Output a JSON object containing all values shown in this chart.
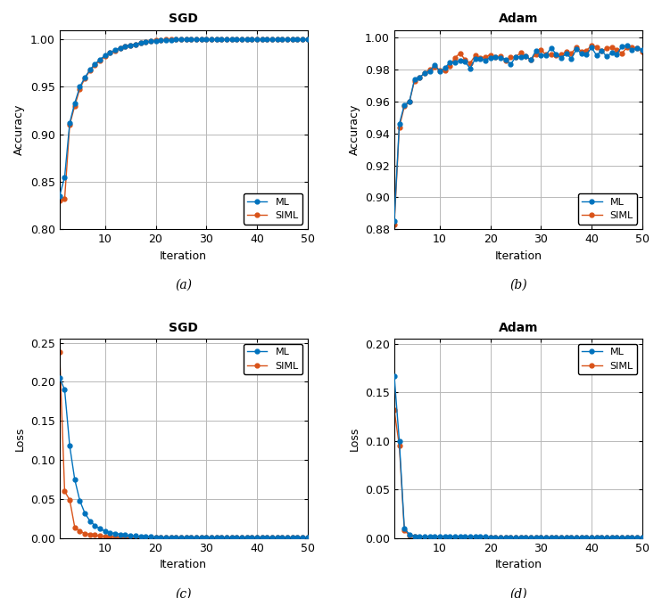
{
  "blue_color": "#0072BD",
  "orange_color": "#D95319",
  "background_color": "#ffffff",
  "grid_color": "#b0b0b0",
  "sgd_acc_ml": [
    0.835,
    0.855,
    0.912,
    0.933,
    0.95,
    0.96,
    0.968,
    0.974,
    0.979,
    0.983,
    0.986,
    0.989,
    0.991,
    0.993,
    0.994,
    0.995,
    0.996,
    0.997,
    0.998,
    0.998,
    0.999,
    0.999,
    0.999,
    1.0,
    1.0,
    1.0,
    1.0,
    1.0,
    1.0,
    1.0,
    1.0,
    1.0,
    1.0,
    1.0,
    1.0,
    1.0,
    1.0,
    1.0,
    1.0,
    1.0,
    1.0,
    1.0,
    1.0,
    1.0,
    1.0,
    1.0,
    1.0,
    1.0,
    1.0,
    1.0
  ],
  "sgd_acc_siml": [
    0.83,
    0.832,
    0.91,
    0.93,
    0.948,
    0.959,
    0.967,
    0.973,
    0.978,
    0.982,
    0.986,
    0.988,
    0.991,
    0.993,
    0.994,
    0.995,
    0.996,
    0.997,
    0.998,
    0.999,
    0.999,
    1.0,
    1.0,
    1.0,
    1.0,
    1.0,
    1.0,
    1.0,
    1.0,
    1.0,
    1.0,
    1.0,
    1.0,
    1.0,
    1.0,
    1.0,
    1.0,
    1.0,
    1.0,
    1.0,
    1.0,
    1.0,
    1.0,
    1.0,
    1.0,
    1.0,
    1.0,
    1.0,
    1.0,
    1.0
  ],
  "adam_acc_ml": [
    0.885,
    0.946,
    0.958,
    0.96,
    0.974,
    0.975,
    0.978,
    0.979,
    0.98,
    0.98,
    0.981,
    0.984,
    0.986,
    0.986,
    0.985,
    0.984,
    0.985,
    0.986,
    0.987,
    0.988,
    0.987,
    0.988,
    0.987,
    0.986,
    0.987,
    0.988,
    0.988,
    0.989,
    0.989,
    0.989,
    0.99,
    0.99,
    0.99,
    0.99,
    0.991,
    0.991,
    0.991,
    0.991,
    0.991,
    0.992,
    0.992,
    0.991,
    0.992,
    0.992,
    0.992,
    0.992,
    0.992,
    0.993,
    0.992,
    0.993
  ],
  "adam_acc_siml": [
    0.883,
    0.944,
    0.957,
    0.96,
    0.973,
    0.975,
    0.978,
    0.98,
    0.981,
    0.981,
    0.982,
    0.985,
    0.987,
    0.987,
    0.986,
    0.985,
    0.986,
    0.987,
    0.988,
    0.989,
    0.988,
    0.989,
    0.988,
    0.987,
    0.988,
    0.989,
    0.989,
    0.989,
    0.99,
    0.99,
    0.99,
    0.991,
    0.991,
    0.991,
    0.992,
    0.992,
    0.992,
    0.992,
    0.992,
    0.993,
    0.992,
    0.992,
    0.993,
    0.993,
    0.993,
    0.993,
    0.993,
    0.993,
    0.993,
    0.993
  ],
  "sgd_loss_ml": [
    0.205,
    0.19,
    0.118,
    0.075,
    0.048,
    0.032,
    0.022,
    0.016,
    0.012,
    0.009,
    0.007,
    0.006,
    0.005,
    0.004,
    0.003,
    0.003,
    0.002,
    0.002,
    0.002,
    0.001,
    0.001,
    0.001,
    0.001,
    0.001,
    0.001,
    0.001,
    0.001,
    0.001,
    0.001,
    0.001,
    0.001,
    0.001,
    0.001,
    0.001,
    0.001,
    0.001,
    0.001,
    0.001,
    0.001,
    0.001,
    0.001,
    0.001,
    0.001,
    0.001,
    0.001,
    0.001,
    0.001,
    0.001,
    0.001,
    0.001
  ],
  "sgd_loss_siml": [
    0.238,
    0.06,
    0.049,
    0.014,
    0.009,
    0.006,
    0.005,
    0.004,
    0.003,
    0.002,
    0.002,
    0.002,
    0.001,
    0.001,
    0.001,
    0.001,
    0.001,
    0.001,
    0.001,
    0.001,
    0.001,
    0.001,
    0.001,
    0.001,
    0.001,
    0.001,
    0.001,
    0.001,
    0.001,
    0.001,
    0.001,
    0.001,
    0.001,
    0.001,
    0.001,
    0.001,
    0.001,
    0.001,
    0.001,
    0.001,
    0.001,
    0.001,
    0.001,
    0.001,
    0.001,
    0.001,
    0.001,
    0.001,
    0.001,
    0.001
  ],
  "adam_loss_ml": [
    0.167,
    0.1,
    0.01,
    0.004,
    0.002,
    0.002,
    0.002,
    0.002,
    0.002,
    0.002,
    0.002,
    0.002,
    0.002,
    0.002,
    0.002,
    0.002,
    0.002,
    0.002,
    0.002,
    0.001,
    0.001,
    0.001,
    0.001,
    0.001,
    0.001,
    0.001,
    0.001,
    0.001,
    0.001,
    0.001,
    0.001,
    0.001,
    0.001,
    0.001,
    0.001,
    0.001,
    0.001,
    0.001,
    0.001,
    0.001,
    0.001,
    0.001,
    0.001,
    0.001,
    0.001,
    0.001,
    0.001,
    0.001,
    0.001,
    0.001
  ],
  "adam_loss_siml": [
    0.132,
    0.095,
    0.008,
    0.003,
    0.002,
    0.001,
    0.001,
    0.001,
    0.001,
    0.001,
    0.001,
    0.001,
    0.001,
    0.001,
    0.001,
    0.001,
    0.001,
    0.001,
    0.001,
    0.001,
    0.001,
    0.001,
    0.001,
    0.001,
    0.001,
    0.001,
    0.001,
    0.001,
    0.001,
    0.001,
    0.001,
    0.001,
    0.001,
    0.001,
    0.001,
    0.001,
    0.001,
    0.001,
    0.001,
    0.001,
    0.001,
    0.001,
    0.001,
    0.001,
    0.001,
    0.001,
    0.001,
    0.001,
    0.001,
    0.001
  ],
  "iterations": [
    1,
    2,
    3,
    4,
    5,
    6,
    7,
    8,
    9,
    10,
    11,
    12,
    13,
    14,
    15,
    16,
    17,
    18,
    19,
    20,
    21,
    22,
    23,
    24,
    25,
    26,
    27,
    28,
    29,
    30,
    31,
    32,
    33,
    34,
    35,
    36,
    37,
    38,
    39,
    40,
    41,
    42,
    43,
    44,
    45,
    46,
    47,
    48,
    49,
    50
  ],
  "subplot_labels": [
    "(a)",
    "(b)",
    "(c)",
    "(d)"
  ]
}
